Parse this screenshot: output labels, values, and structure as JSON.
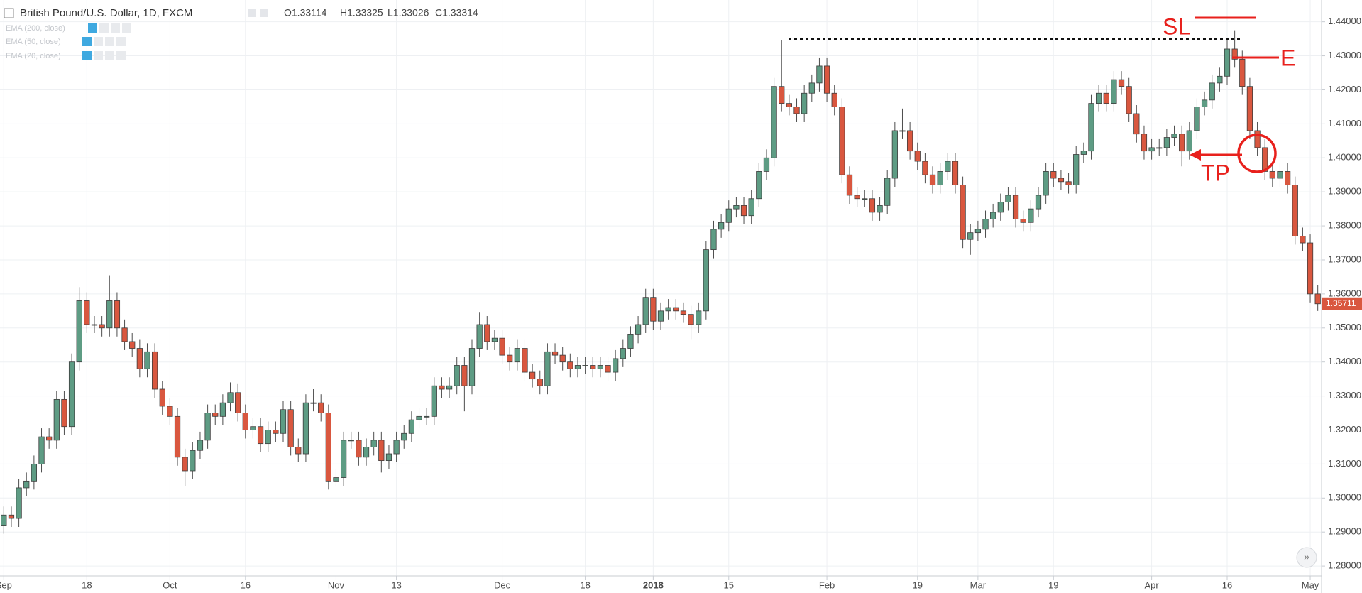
{
  "chart_data": {
    "type": "candlestick",
    "title": "British Pound/U.S. Dollar, 1D, FXCM",
    "ohlc_legend": [
      "O1.33114",
      "H1.33325",
      "L1.33026",
      "C1.33314"
    ],
    "indicators": [
      "EMA (200, close)",
      "EMA (50, close)",
      "EMA (20, close)"
    ],
    "annotations": [
      "SL",
      "E",
      "TP"
    ],
    "last_price_label": "1.35711",
    "up_color": "#5e9c84",
    "down_color": "#d9573f",
    "grid": true,
    "ylim": [
      1.2771,
      1.4464
    ],
    "yticks": [
      {
        "value": 1.28,
        "label": "1.28000"
      },
      {
        "value": 1.29,
        "label": "1.29000"
      },
      {
        "value": 1.3,
        "label": "1.30000"
      },
      {
        "value": 1.31,
        "label": "1.31000"
      },
      {
        "value": 1.32,
        "label": "1.32000"
      },
      {
        "value": 1.33,
        "label": "1.33000"
      },
      {
        "value": 1.34,
        "label": "1.34000"
      },
      {
        "value": 1.35,
        "label": "1.35000"
      },
      {
        "value": 1.36,
        "label": "1.36000"
      },
      {
        "value": 1.37,
        "label": "1.37000"
      },
      {
        "value": 1.38,
        "label": "1.38000"
      },
      {
        "value": 1.39,
        "label": "1.39000"
      },
      {
        "value": 1.4,
        "label": "1.40000"
      },
      {
        "value": 1.41,
        "label": "1.41000"
      },
      {
        "value": 1.42,
        "label": "1.42000"
      },
      {
        "value": 1.43,
        "label": "1.43000"
      },
      {
        "value": 1.44,
        "label": "1.44000"
      }
    ],
    "xticks": [
      {
        "value": 0,
        "label": "Sep"
      },
      {
        "value": 11,
        "label": "18"
      },
      {
        "value": 22,
        "label": "Oct"
      },
      {
        "value": 32,
        "label": "16"
      },
      {
        "value": 44,
        "label": "Nov"
      },
      {
        "value": 52,
        "label": "13"
      },
      {
        "value": 66,
        "label": "Dec"
      },
      {
        "value": 77,
        "label": "18"
      },
      {
        "value": 86,
        "label": "2018"
      },
      {
        "value": 96,
        "label": "15"
      },
      {
        "value": 109,
        "label": "Feb"
      },
      {
        "value": 121,
        "label": "19"
      },
      {
        "value": 129,
        "label": "Mar"
      },
      {
        "value": 139,
        "label": "19"
      },
      {
        "value": 152,
        "label": "Apr"
      },
      {
        "value": 162,
        "label": "16"
      },
      {
        "value": 173,
        "label": "May"
      }
    ],
    "ohlc": [
      [
        1.292,
        1.2975,
        1.2895,
        1.295
      ],
      [
        1.295,
        1.2975,
        1.2915,
        1.294
      ],
      [
        1.294,
        1.3055,
        1.2915,
        1.303
      ],
      [
        1.303,
        1.3075,
        1.3005,
        1.305
      ],
      [
        1.305,
        1.3125,
        1.3025,
        1.31
      ],
      [
        1.31,
        1.3205,
        1.3075,
        1.318
      ],
      [
        1.318,
        1.3205,
        1.3145,
        1.317
      ],
      [
        1.317,
        1.3315,
        1.3145,
        1.329
      ],
      [
        1.329,
        1.3315,
        1.3185,
        1.321
      ],
      [
        1.321,
        1.3425,
        1.3185,
        1.34
      ],
      [
        1.34,
        1.362,
        1.3375,
        1.358
      ],
      [
        1.358,
        1.3605,
        1.3485,
        1.351
      ],
      [
        1.351,
        1.3535,
        1.3485,
        1.351
      ],
      [
        1.351,
        1.3535,
        1.3475,
        1.35
      ],
      [
        1.35,
        1.3655,
        1.3475,
        1.358
      ],
      [
        1.358,
        1.3605,
        1.3475,
        1.35
      ],
      [
        1.35,
        1.3525,
        1.3435,
        1.346
      ],
      [
        1.346,
        1.3485,
        1.3415,
        1.344
      ],
      [
        1.344,
        1.3465,
        1.3355,
        1.338
      ],
      [
        1.338,
        1.3455,
        1.3355,
        1.343
      ],
      [
        1.343,
        1.3455,
        1.3295,
        1.332
      ],
      [
        1.332,
        1.3345,
        1.3245,
        1.327
      ],
      [
        1.327,
        1.3295,
        1.3215,
        1.324
      ],
      [
        1.324,
        1.3265,
        1.3095,
        1.312
      ],
      [
        1.312,
        1.3145,
        1.3035,
        1.308
      ],
      [
        1.308,
        1.3165,
        1.3055,
        1.314
      ],
      [
        1.314,
        1.3195,
        1.3115,
        1.317
      ],
      [
        1.317,
        1.3275,
        1.3145,
        1.325
      ],
      [
        1.325,
        1.3275,
        1.3215,
        1.324
      ],
      [
        1.324,
        1.3305,
        1.3215,
        1.328
      ],
      [
        1.328,
        1.334,
        1.3255,
        1.331
      ],
      [
        1.331,
        1.3335,
        1.3225,
        1.325
      ],
      [
        1.325,
        1.3275,
        1.3175,
        1.32
      ],
      [
        1.32,
        1.3235,
        1.3175,
        1.321
      ],
      [
        1.321,
        1.3235,
        1.3135,
        1.316
      ],
      [
        1.316,
        1.3225,
        1.3135,
        1.32
      ],
      [
        1.32,
        1.3225,
        1.3165,
        1.319
      ],
      [
        1.319,
        1.3285,
        1.3165,
        1.326
      ],
      [
        1.326,
        1.3285,
        1.3125,
        1.315
      ],
      [
        1.315,
        1.3175,
        1.3105,
        1.313
      ],
      [
        1.313,
        1.3305,
        1.3105,
        1.328
      ],
      [
        1.328,
        1.332,
        1.3255,
        1.328
      ],
      [
        1.328,
        1.3305,
        1.3225,
        1.325
      ],
      [
        1.325,
        1.3275,
        1.3025,
        1.305
      ],
      [
        1.305,
        1.3085,
        1.3035,
        1.306
      ],
      [
        1.306,
        1.3195,
        1.3035,
        1.317
      ],
      [
        1.317,
        1.3195,
        1.3145,
        1.317
      ],
      [
        1.317,
        1.3195,
        1.3095,
        1.312
      ],
      [
        1.312,
        1.3175,
        1.3095,
        1.315
      ],
      [
        1.315,
        1.3195,
        1.3125,
        1.317
      ],
      [
        1.317,
        1.3195,
        1.3075,
        1.311
      ],
      [
        1.311,
        1.3155,
        1.3085,
        1.313
      ],
      [
        1.313,
        1.3195,
        1.3105,
        1.317
      ],
      [
        1.317,
        1.3215,
        1.3145,
        1.319
      ],
      [
        1.319,
        1.3255,
        1.3165,
        1.323
      ],
      [
        1.323,
        1.3265,
        1.3205,
        1.324
      ],
      [
        1.324,
        1.3265,
        1.3215,
        1.324
      ],
      [
        1.324,
        1.3355,
        1.3215,
        1.333
      ],
      [
        1.333,
        1.3355,
        1.3295,
        1.332
      ],
      [
        1.332,
        1.3355,
        1.3295,
        1.333
      ],
      [
        1.333,
        1.3415,
        1.3305,
        1.339
      ],
      [
        1.339,
        1.3415,
        1.3255,
        1.333
      ],
      [
        1.333,
        1.3465,
        1.3305,
        1.344
      ],
      [
        1.344,
        1.3545,
        1.3415,
        1.351
      ],
      [
        1.351,
        1.3535,
        1.3435,
        1.346
      ],
      [
        1.346,
        1.3495,
        1.3435,
        1.347
      ],
      [
        1.347,
        1.3495,
        1.3395,
        1.342
      ],
      [
        1.342,
        1.3445,
        1.3375,
        1.34
      ],
      [
        1.34,
        1.3465,
        1.3375,
        1.344
      ],
      [
        1.344,
        1.3465,
        1.3345,
        1.337
      ],
      [
        1.337,
        1.3395,
        1.3325,
        1.335
      ],
      [
        1.335,
        1.3375,
        1.3305,
        1.333
      ],
      [
        1.333,
        1.3455,
        1.3305,
        1.343
      ],
      [
        1.343,
        1.3455,
        1.3395,
        1.342
      ],
      [
        1.342,
        1.3445,
        1.3375,
        1.34
      ],
      [
        1.34,
        1.3425,
        1.3355,
        1.338
      ],
      [
        1.338,
        1.3415,
        1.3355,
        1.339
      ],
      [
        1.339,
        1.3415,
        1.3365,
        1.339
      ],
      [
        1.339,
        1.3415,
        1.3355,
        1.338
      ],
      [
        1.338,
        1.3415,
        1.3355,
        1.339
      ],
      [
        1.339,
        1.3415,
        1.3345,
        1.337
      ],
      [
        1.337,
        1.3435,
        1.3345,
        1.341
      ],
      [
        1.341,
        1.3465,
        1.3385,
        1.344
      ],
      [
        1.344,
        1.3505,
        1.3415,
        1.348
      ],
      [
        1.348,
        1.3535,
        1.3455,
        1.351
      ],
      [
        1.351,
        1.3615,
        1.3485,
        1.359
      ],
      [
        1.359,
        1.3615,
        1.3495,
        1.352
      ],
      [
        1.352,
        1.3575,
        1.3495,
        1.355
      ],
      [
        1.355,
        1.3585,
        1.3525,
        1.356
      ],
      [
        1.356,
        1.3585,
        1.3525,
        1.355
      ],
      [
        1.355,
        1.3575,
        1.3515,
        1.354
      ],
      [
        1.354,
        1.3565,
        1.3465,
        1.351
      ],
      [
        1.351,
        1.3575,
        1.3485,
        1.355
      ],
      [
        1.355,
        1.3755,
        1.3525,
        1.373
      ],
      [
        1.373,
        1.3815,
        1.3705,
        1.379
      ],
      [
        1.379,
        1.3835,
        1.3765,
        1.381
      ],
      [
        1.381,
        1.3875,
        1.3785,
        1.385
      ],
      [
        1.385,
        1.3885,
        1.3825,
        1.386
      ],
      [
        1.386,
        1.3885,
        1.3805,
        1.383
      ],
      [
        1.383,
        1.3905,
        1.3805,
        1.388
      ],
      [
        1.388,
        1.3985,
        1.3855,
        1.396
      ],
      [
        1.396,
        1.4025,
        1.3935,
        1.4
      ],
      [
        1.4,
        1.4235,
        1.3975,
        1.421
      ],
      [
        1.421,
        1.4345,
        1.4135,
        1.416
      ],
      [
        1.416,
        1.4185,
        1.4125,
        1.415
      ],
      [
        1.415,
        1.4175,
        1.4105,
        1.413
      ],
      [
        1.413,
        1.4215,
        1.4105,
        1.419
      ],
      [
        1.419,
        1.4245,
        1.4165,
        1.422
      ],
      [
        1.422,
        1.4295,
        1.4195,
        1.427
      ],
      [
        1.427,
        1.4295,
        1.4165,
        1.419
      ],
      [
        1.419,
        1.4215,
        1.4125,
        1.415
      ],
      [
        1.415,
        1.4175,
        1.3925,
        1.395
      ],
      [
        1.395,
        1.3975,
        1.3865,
        1.389
      ],
      [
        1.389,
        1.3915,
        1.3855,
        1.388
      ],
      [
        1.388,
        1.3905,
        1.3855,
        1.388
      ],
      [
        1.388,
        1.3905,
        1.3815,
        1.384
      ],
      [
        1.384,
        1.3885,
        1.3815,
        1.386
      ],
      [
        1.386,
        1.3965,
        1.3835,
        1.394
      ],
      [
        1.394,
        1.4105,
        1.3915,
        1.408
      ],
      [
        1.408,
        1.4145,
        1.4055,
        1.408
      ],
      [
        1.408,
        1.4105,
        1.3995,
        1.402
      ],
      [
        1.402,
        1.4045,
        1.3965,
        1.399
      ],
      [
        1.399,
        1.4015,
        1.3925,
        1.395
      ],
      [
        1.395,
        1.3975,
        1.3895,
        1.392
      ],
      [
        1.392,
        1.3985,
        1.3895,
        1.396
      ],
      [
        1.396,
        1.4015,
        1.3935,
        1.399
      ],
      [
        1.399,
        1.4015,
        1.3895,
        1.392
      ],
      [
        1.392,
        1.3945,
        1.3735,
        1.376
      ],
      [
        1.376,
        1.3805,
        1.3715,
        1.378
      ],
      [
        1.378,
        1.3815,
        1.3755,
        1.379
      ],
      [
        1.379,
        1.3845,
        1.3765,
        1.382
      ],
      [
        1.382,
        1.3865,
        1.3795,
        1.384
      ],
      [
        1.384,
        1.3895,
        1.3815,
        1.387
      ],
      [
        1.387,
        1.3915,
        1.3845,
        1.389
      ],
      [
        1.389,
        1.3915,
        1.3795,
        1.382
      ],
      [
        1.382,
        1.3845,
        1.3785,
        1.381
      ],
      [
        1.381,
        1.3875,
        1.3785,
        1.385
      ],
      [
        1.385,
        1.3915,
        1.3825,
        1.389
      ],
      [
        1.389,
        1.3985,
        1.3865,
        1.396
      ],
      [
        1.396,
        1.3985,
        1.3915,
        1.394
      ],
      [
        1.394,
        1.3965,
        1.3905,
        1.393
      ],
      [
        1.393,
        1.3955,
        1.3895,
        1.392
      ],
      [
        1.392,
        1.4035,
        1.3895,
        1.401
      ],
      [
        1.401,
        1.4045,
        1.3985,
        1.402
      ],
      [
        1.402,
        1.4185,
        1.3995,
        1.416
      ],
      [
        1.416,
        1.4215,
        1.4135,
        1.419
      ],
      [
        1.419,
        1.4215,
        1.4135,
        1.416
      ],
      [
        1.416,
        1.4255,
        1.4135,
        1.423
      ],
      [
        1.423,
        1.4255,
        1.4185,
        1.421
      ],
      [
        1.421,
        1.4235,
        1.4105,
        1.413
      ],
      [
        1.413,
        1.4155,
        1.4045,
        1.407
      ],
      [
        1.407,
        1.4095,
        1.3995,
        1.402
      ],
      [
        1.402,
        1.4055,
        1.3995,
        1.403
      ],
      [
        1.403,
        1.4055,
        1.4005,
        1.403
      ],
      [
        1.403,
        1.4085,
        1.4005,
        1.406
      ],
      [
        1.406,
        1.4095,
        1.4035,
        1.407
      ],
      [
        1.407,
        1.4095,
        1.3975,
        1.402
      ],
      [
        1.402,
        1.4105,
        1.3995,
        1.408
      ],
      [
        1.408,
        1.4175,
        1.4055,
        1.415
      ],
      [
        1.415,
        1.4195,
        1.4125,
        1.417
      ],
      [
        1.417,
        1.4245,
        1.4145,
        1.422
      ],
      [
        1.422,
        1.4265,
        1.4195,
        1.424
      ],
      [
        1.424,
        1.4345,
        1.4215,
        1.432
      ],
      [
        1.432,
        1.4375,
        1.4265,
        1.429
      ],
      [
        1.429,
        1.4315,
        1.4185,
        1.421
      ],
      [
        1.421,
        1.4235,
        1.4055,
        1.408
      ],
      [
        1.408,
        1.4105,
        1.4005,
        1.403
      ],
      [
        1.403,
        1.4055,
        1.3935,
        1.396
      ],
      [
        1.396,
        1.3985,
        1.3915,
        1.394
      ],
      [
        1.394,
        1.3985,
        1.3915,
        1.396
      ],
      [
        1.396,
        1.3985,
        1.3895,
        1.392
      ],
      [
        1.392,
        1.3945,
        1.3745,
        1.377
      ],
      [
        1.377,
        1.3795,
        1.3725,
        1.375
      ],
      [
        1.375,
        1.3775,
        1.3575,
        1.36
      ],
      [
        1.36,
        1.3625,
        1.355,
        1.3571
      ]
    ]
  }
}
